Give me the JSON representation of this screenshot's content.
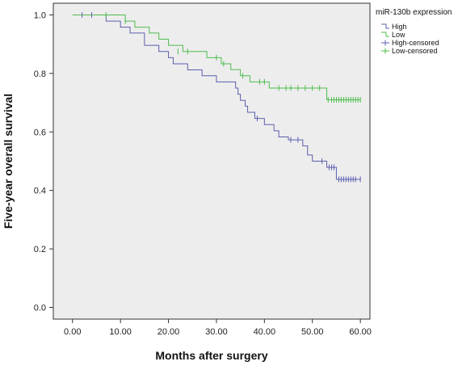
{
  "chart_data": {
    "type": "line",
    "subtype": "kaplan-meier-step",
    "xlabel": "Months after surgery",
    "ylabel": "Five-year overall survival",
    "xlim": [
      -4,
      62
    ],
    "ylim": [
      -0.04,
      1.04
    ],
    "xticks": [
      "0.00",
      "10.00",
      "20.00",
      "30.00",
      "40.00",
      "50.00",
      "60.00"
    ],
    "yticks": [
      "0.0",
      "0.2",
      "0.4",
      "0.6",
      "0.8",
      "1.0"
    ],
    "grid": false,
    "background_color": "#ededed",
    "legend": {
      "title": "miR-130b expression",
      "position": "outside-top-right",
      "entries": [
        {
          "label": "High",
          "marker": "step",
          "color": "#5c5fae"
        },
        {
          "label": "Low",
          "marker": "step",
          "color": "#4fbc4f"
        },
        {
          "label": "High-censored",
          "marker": "plus",
          "color": "#5c5fae"
        },
        {
          "label": "Low-censored",
          "marker": "plus",
          "color": "#4fbc4f"
        }
      ]
    },
    "series": [
      {
        "name": "High",
        "color": "#5c5fae",
        "steps": [
          [
            0,
            1.0
          ],
          [
            7,
            0.979
          ],
          [
            10,
            0.958
          ],
          [
            12,
            0.938
          ],
          [
            15,
            0.896
          ],
          [
            18,
            0.875
          ],
          [
            20,
            0.854
          ],
          [
            21,
            0.833
          ],
          [
            24,
            0.812
          ],
          [
            27,
            0.792
          ],
          [
            30,
            0.771
          ],
          [
            34,
            0.75
          ],
          [
            34.5,
            0.729
          ],
          [
            35,
            0.708
          ],
          [
            36,
            0.688
          ],
          [
            36.5,
            0.667
          ],
          [
            38,
            0.646
          ],
          [
            40,
            0.625
          ],
          [
            42,
            0.604
          ],
          [
            43,
            0.583
          ],
          [
            45,
            0.573
          ],
          [
            48,
            0.552
          ],
          [
            49,
            0.521
          ],
          [
            50,
            0.5
          ],
          [
            53,
            0.479
          ],
          [
            55,
            0.438
          ],
          [
            60,
            0.438
          ]
        ],
        "censored": [
          [
            2,
            1.0
          ],
          [
            4,
            1.0
          ],
          [
            38.5,
            0.646
          ],
          [
            45.5,
            0.573
          ],
          [
            47,
            0.573
          ],
          [
            52,
            0.5
          ],
          [
            53.5,
            0.479
          ],
          [
            54,
            0.479
          ],
          [
            54.5,
            0.479
          ],
          [
            55.5,
            0.438
          ],
          [
            56,
            0.438
          ],
          [
            56.5,
            0.438
          ],
          [
            57,
            0.438
          ],
          [
            57.5,
            0.438
          ],
          [
            58,
            0.438
          ],
          [
            58.5,
            0.438
          ],
          [
            59,
            0.438
          ],
          [
            60,
            0.438
          ]
        ]
      },
      {
        "name": "Low",
        "color": "#4fbc4f",
        "steps": [
          [
            0,
            1.0
          ],
          [
            11,
            0.979
          ],
          [
            13,
            0.958
          ],
          [
            16,
            0.938
          ],
          [
            18,
            0.917
          ],
          [
            20,
            0.896
          ],
          [
            23,
            0.875
          ],
          [
            28,
            0.854
          ],
          [
            31,
            0.833
          ],
          [
            33,
            0.813
          ],
          [
            35,
            0.792
          ],
          [
            37,
            0.771
          ],
          [
            41,
            0.75
          ],
          [
            53,
            0.71
          ],
          [
            60,
            0.71
          ]
        ],
        "censored": [
          [
            7,
            1.0
          ],
          [
            11,
            0.979
          ],
          [
            22,
            0.875
          ],
          [
            24,
            0.875
          ],
          [
            30,
            0.854
          ],
          [
            31.5,
            0.833
          ],
          [
            35.5,
            0.792
          ],
          [
            39,
            0.771
          ],
          [
            40,
            0.771
          ],
          [
            43,
            0.75
          ],
          [
            44.5,
            0.75
          ],
          [
            45.5,
            0.75
          ],
          [
            47,
            0.75
          ],
          [
            48.5,
            0.75
          ],
          [
            50,
            0.75
          ],
          [
            51.5,
            0.75
          ],
          [
            53.3,
            0.71
          ],
          [
            54,
            0.71
          ],
          [
            54.5,
            0.71
          ],
          [
            55,
            0.71
          ],
          [
            55.5,
            0.71
          ],
          [
            56,
            0.71
          ],
          [
            56.5,
            0.71
          ],
          [
            57,
            0.71
          ],
          [
            57.5,
            0.71
          ],
          [
            58,
            0.71
          ],
          [
            58.5,
            0.71
          ],
          [
            59,
            0.71
          ],
          [
            59.5,
            0.71
          ],
          [
            60,
            0.71
          ]
        ]
      }
    ]
  }
}
